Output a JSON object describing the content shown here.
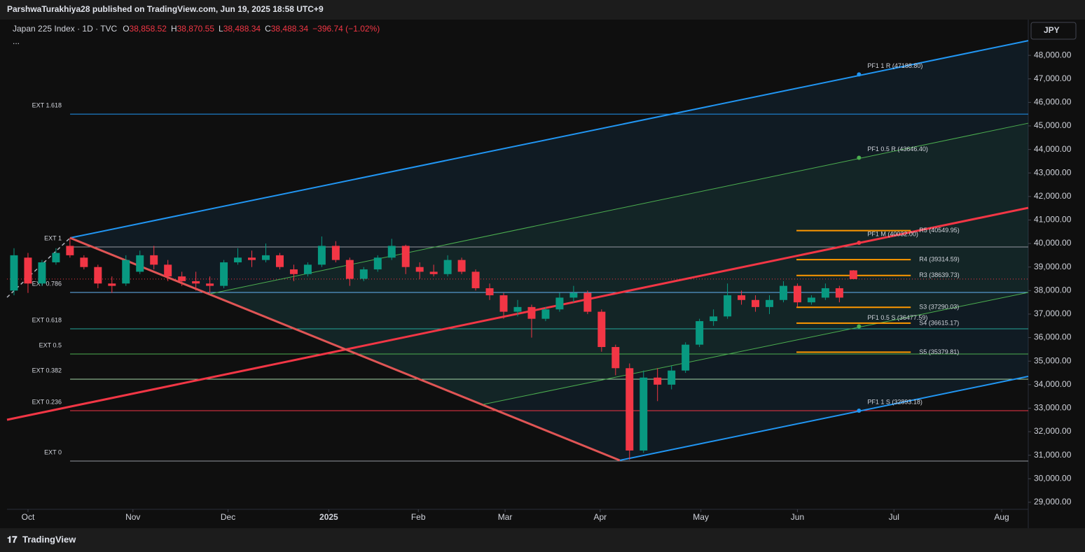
{
  "header": {
    "publisher": "ParshwaTurakhiya28 published on TradingView.com, Jun 19, 2025 18:58 UTC+9"
  },
  "chart_data": {
    "type": "candlestick",
    "symbol": "Japan 225 Index · 1D · TVC",
    "legend": [
      {
        "key": "O",
        "value": "38,858.52"
      },
      {
        "key": "H",
        "value": "38,870.55"
      },
      {
        "key": "L",
        "value": "38,488.34"
      },
      {
        "key": "C",
        "value": "38,488.34"
      }
    ],
    "change": "−396.74 (−1.02%)",
    "more": "...",
    "currency": "JPY",
    "colors": {
      "up": "#089981",
      "down": "#f23645"
    },
    "ohlc": [
      [
        38000,
        39800,
        37800,
        39500
      ],
      [
        39400,
        39600,
        37900,
        38300
      ],
      [
        38300,
        39300,
        38200,
        39200
      ],
      [
        39200,
        39800,
        39100,
        39600
      ],
      [
        39900,
        40250,
        39400,
        39500
      ],
      [
        39400,
        39500,
        38900,
        39000
      ],
      [
        39000,
        39100,
        38100,
        38300
      ],
      [
        38300,
        38600,
        37900,
        38200
      ],
      [
        38300,
        39500,
        38200,
        39300
      ],
      [
        38800,
        39700,
        38700,
        39500
      ],
      [
        39500,
        39900,
        38900,
        39100
      ],
      [
        39100,
        39300,
        38400,
        38600
      ],
      [
        38600,
        38800,
        38200,
        38400
      ],
      [
        38400,
        38800,
        38000,
        38300
      ],
      [
        38300,
        38600,
        37900,
        38200
      ],
      [
        38200,
        39300,
        38100,
        39200
      ],
      [
        39200,
        39800,
        39100,
        39400
      ],
      [
        39400,
        39700,
        39000,
        39300
      ],
      [
        39300,
        40000,
        39200,
        39500
      ],
      [
        39500,
        39600,
        38900,
        39000
      ],
      [
        38900,
        39100,
        38400,
        38700
      ],
      [
        38700,
        39200,
        38600,
        39100
      ],
      [
        39100,
        40300,
        39000,
        39900
      ],
      [
        39900,
        40100,
        39200,
        39300
      ],
      [
        39300,
        39400,
        38200,
        38500
      ],
      [
        38500,
        39000,
        38400,
        38900
      ],
      [
        38900,
        39500,
        38800,
        39400
      ],
      [
        39400,
        40200,
        39300,
        39900
      ],
      [
        39900,
        39950,
        38700,
        39000
      ],
      [
        39000,
        39200,
        38500,
        38800
      ],
      [
        38800,
        39100,
        38600,
        38700
      ],
      [
        38700,
        39500,
        38600,
        39300
      ],
      [
        39300,
        39400,
        38700,
        38800
      ],
      [
        38800,
        38900,
        38000,
        38100
      ],
      [
        38100,
        38300,
        37600,
        37800
      ],
      [
        37800,
        37900,
        36800,
        37100
      ],
      [
        37100,
        37600,
        36900,
        37300
      ],
      [
        37300,
        37400,
        36000,
        36800
      ],
      [
        36800,
        37300,
        36700,
        37200
      ],
      [
        37200,
        37900,
        37100,
        37700
      ],
      [
        37700,
        38200,
        37500,
        37900
      ],
      [
        37900,
        38000,
        37000,
        37100
      ],
      [
        37100,
        37200,
        35400,
        35600
      ],
      [
        35600,
        35700,
        34400,
        34700
      ],
      [
        34700,
        34900,
        30800,
        31200
      ],
      [
        31200,
        34600,
        31100,
        34300
      ],
      [
        34300,
        34700,
        33300,
        34000
      ],
      [
        34000,
        34800,
        33800,
        34600
      ],
      [
        34600,
        35800,
        34500,
        35700
      ],
      [
        35700,
        36800,
        35600,
        36700
      ],
      [
        36700,
        37200,
        36500,
        36900
      ],
      [
        36900,
        38300,
        36800,
        37800
      ],
      [
        37800,
        38000,
        37400,
        37600
      ],
      [
        37600,
        37800,
        37100,
        37300
      ],
      [
        37300,
        37800,
        37000,
        37600
      ],
      [
        37600,
        38400,
        37500,
        38200
      ],
      [
        38200,
        38300,
        37300,
        37500
      ],
      [
        37500,
        37800,
        37400,
        37700
      ],
      [
        37700,
        38300,
        37600,
        38100
      ],
      [
        38100,
        38200,
        37500,
        37700
      ],
      [
        38858.52,
        38870.55,
        38488.34,
        38488.34
      ]
    ],
    "last_price": 38488.34,
    "xlim": [
      0,
      73
    ],
    "xticks": [
      {
        "value": 1.5,
        "label": "Oct"
      },
      {
        "value": 9.0,
        "label": "Nov"
      },
      {
        "value": 15.8,
        "label": "Dec"
      },
      {
        "value": 23.0,
        "label": "2025"
      },
      {
        "value": 29.4,
        "label": "Feb"
      },
      {
        "value": 35.6,
        "label": "Mar"
      },
      {
        "value": 42.4,
        "label": "Apr"
      },
      {
        "value": 49.6,
        "label": "May"
      },
      {
        "value": 56.5,
        "label": "Jun"
      },
      {
        "value": 63.4,
        "label": "Jul"
      },
      {
        "value": 71.1,
        "label": "Aug"
      }
    ],
    "ylim": [
      28700,
      49520
    ],
    "yticks": [
      {
        "value": 29000,
        "label": "29,000.00"
      },
      {
        "value": 30000,
        "label": "30,000.00"
      },
      {
        "value": 31000,
        "label": "31,000.00"
      },
      {
        "value": 32000,
        "label": "32,000.00"
      },
      {
        "value": 33000,
        "label": "33,000.00"
      },
      {
        "value": 34000,
        "label": "34,000.00"
      },
      {
        "value": 35000,
        "label": "35,000.00"
      },
      {
        "value": 36000,
        "label": "36,000.00"
      },
      {
        "value": 37000,
        "label": "37,000.00"
      },
      {
        "value": 38000,
        "label": "38,000.00"
      },
      {
        "value": 39000,
        "label": "39,000.00"
      },
      {
        "value": 40000,
        "label": "40,000.00"
      },
      {
        "value": 41000,
        "label": "41,000.00"
      },
      {
        "value": 42000,
        "label": "42,000.00"
      },
      {
        "value": 43000,
        "label": "43,000.00"
      },
      {
        "value": 44000,
        "label": "44,000.00"
      },
      {
        "value": 45000,
        "label": "45,000.00"
      },
      {
        "value": 46000,
        "label": "46,000.00"
      },
      {
        "value": 47000,
        "label": "47,000.00"
      },
      {
        "value": 48000,
        "label": "48,000.00"
      }
    ],
    "lines": [
      {
        "color": "#2196f3",
        "width": 2,
        "x": [
          4.51,
          73
        ],
        "y": [
          40240,
          48624
        ]
      },
      {
        "color": "#2196f3",
        "width": 2,
        "x": [
          43.8,
          73
        ],
        "y": [
          30783,
          34351
        ]
      },
      {
        "color": "#f23645",
        "width": 3,
        "x": [
          0,
          73
        ],
        "y": [
          32508,
          41518
        ]
      },
      {
        "color": "#e05555",
        "width": 3,
        "x": [
          4.51,
          43.8
        ],
        "y": [
          40240,
          30783
        ]
      },
      {
        "color": "#4caf50",
        "width": 1,
        "x": [
          14.52,
          73
        ],
        "y": [
          37860,
          45116
        ]
      },
      {
        "color": "#4caf50",
        "width": 1,
        "x": [
          34.05,
          73
        ],
        "y": [
          33162,
          37920
        ]
      },
      {
        "color": "#b2b5be",
        "width": 1.5,
        "dash": true,
        "x": [
          0,
          4.51
        ],
        "y": [
          37712,
          40240
        ]
      }
    ],
    "levels_from": 4.51,
    "levels": [
      {
        "label": "EXT 1.618",
        "value": 45502,
        "color": "#2196f3"
      },
      {
        "label": "EXT 1",
        "value": 39853,
        "color": "#9598a1"
      },
      {
        "label": "EXT 0.786",
        "value": 37920,
        "color": "#64b5f6"
      },
      {
        "label": "EXT 0.618",
        "value": 36374,
        "color": "#26a69a"
      },
      {
        "label": "EXT 0.5",
        "value": 35303,
        "color": "#4caf50"
      },
      {
        "label": "EXT 0.382",
        "value": 34233,
        "color": "#a5d6a7"
      },
      {
        "label": "EXT 0.236",
        "value": 32895,
        "color": "#f23645"
      },
      {
        "label": "EXT 0",
        "value": 30754,
        "color": "#9598a1"
      }
    ],
    "pivots_x": [
      56.43,
      64.6
    ],
    "pivots": [
      {
        "label": "R5 (40549.95)",
        "value": 40549.95
      },
      {
        "label": "R4 (39314.59)",
        "value": 39314.59
      },
      {
        "label": "R3 (38639.73)",
        "value": 38639.73
      },
      {
        "label": "S3 (37290.03)",
        "value": 37290.03
      },
      {
        "label": "S4 (36615.17)",
        "value": 36615.17
      },
      {
        "label": "S5 (35379.81)",
        "value": 35379.81
      }
    ],
    "pivot_color": "#ff9800",
    "pitchfork_points": [
      {
        "label": "PF1 1 R (47188.80)",
        "x": 60.9,
        "value": 47188.8,
        "color": "#2196f3"
      },
      {
        "label": "PF1 0.5 R (43646.40)",
        "x": 60.9,
        "value": 43646.4,
        "color": "#4caf50"
      },
      {
        "label": "PF1 M (40032.00)",
        "x": 60.9,
        "value": 40032,
        "color": "#f23645"
      },
      {
        "label": "PF1 0.5 S (36477.59)",
        "x": 60.9,
        "value": 36477.59,
        "color": "#4caf50"
      },
      {
        "label": "PF1 1 S (32893.18)",
        "x": 60.9,
        "value": 32893.18,
        "color": "#2196f3"
      }
    ]
  },
  "footer": {
    "brand": "TradingView"
  }
}
